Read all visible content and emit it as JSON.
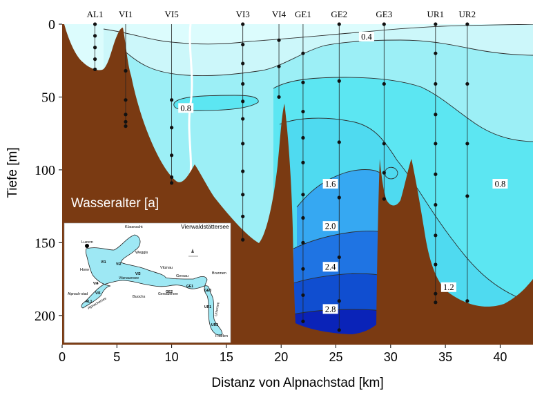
{
  "chart_data": {
    "type": "contour",
    "xlabel": "Distanz von Alpnachstad [km]",
    "ylabel": "Tiefe [m]",
    "xlim": [
      0,
      43
    ],
    "ylim": [
      0,
      220
    ],
    "y_inverted": true,
    "x_ticks": [
      0,
      5,
      10,
      15,
      20,
      25,
      30,
      35,
      40
    ],
    "y_ticks": [
      0,
      50,
      100,
      150,
      200
    ],
    "annotation": "Wasseralter [a]",
    "contour_levels": [
      0.4,
      0.8,
      1.2,
      1.6,
      2.0,
      2.4,
      2.8
    ],
    "contour_labels": [
      {
        "text": "0.4",
        "x": 27.8,
        "y": 9
      },
      {
        "text": "0.8",
        "x": 11.3,
        "y": 58
      },
      {
        "text": "0.8",
        "x": 40.0,
        "y": 110
      },
      {
        "text": "1.2",
        "x": 35.3,
        "y": 181
      },
      {
        "text": "1.6",
        "x": 24.5,
        "y": 110
      },
      {
        "text": "2.0",
        "x": 24.5,
        "y": 139
      },
      {
        "text": "2.4",
        "x": 24.5,
        "y": 167
      },
      {
        "text": "2.8",
        "x": 24.5,
        "y": 196
      }
    ],
    "stations": [
      {
        "name": "AL1",
        "km": 3.0,
        "depths": [
          0,
          8,
          16,
          24,
          31
        ]
      },
      {
        "name": "VI1",
        "km": 5.8,
        "depths": [
          32,
          52,
          62,
          67,
          70
        ]
      },
      {
        "name": "VI5",
        "km": 10.0,
        "depths": [
          52,
          71,
          90,
          105,
          109
        ]
      },
      {
        "name": "VI3",
        "km": 16.5,
        "depths": [
          0,
          14,
          27,
          41,
          53,
          65,
          82,
          101,
          117,
          132,
          148
        ]
      },
      {
        "name": "VI4",
        "km": 19.8,
        "depths": [
          11,
          29,
          50
        ]
      },
      {
        "name": "GE1",
        "km": 22.0,
        "depths": [
          20,
          40,
          60,
          78,
          95,
          117,
          133,
          150,
          168,
          186,
          204
        ]
      },
      {
        "name": "GE2",
        "km": 25.3,
        "depths": [
          0,
          39,
          81,
          119,
          160,
          190,
          210
        ]
      },
      {
        "name": "GE3",
        "km": 29.4,
        "depths": [
          0,
          41,
          82,
          102,
          120
        ]
      },
      {
        "name": "UR1",
        "km": 34.1,
        "depths": [
          0,
          20,
          41,
          62,
          82,
          103,
          124,
          145,
          165,
          185,
          191
        ]
      },
      {
        "name": "UR2",
        "km": 37.0,
        "depths": [
          0,
          41,
          82,
          118,
          190
        ]
      }
    ]
  },
  "inset_map": {
    "title": "Vierwaldstättersee",
    "places": [
      "Küssnacht",
      "Luzern",
      "Weggis",
      "Horw",
      "Vitznau",
      "Brunnen",
      "Gersau",
      "Buochs",
      "Alpnach-stad",
      "Flüelen"
    ],
    "basins": [
      "Vitznauersee",
      "Gersauersee",
      "Alpnachersee",
      "Urnersee"
    ],
    "stations": [
      "AL1",
      "VI1",
      "VI2",
      "VI3",
      "VI4",
      "VI5",
      "GE1",
      "GE2",
      "GE3",
      "UR1",
      "UR2"
    ]
  },
  "colors": {
    "background_plot": "#f3fcfc",
    "terrain": "#7a3a12",
    "water_levels": [
      "#dcfcfd",
      "#ccf7fa",
      "#9ceff6",
      "#5ce6f2",
      "#4fdaf0",
      "#36a8f2",
      "#1f74e3",
      "#104ed0",
      "#0a23b8"
    ],
    "contour_line": "#2d2d2d",
    "station_dot": "#111111"
  }
}
